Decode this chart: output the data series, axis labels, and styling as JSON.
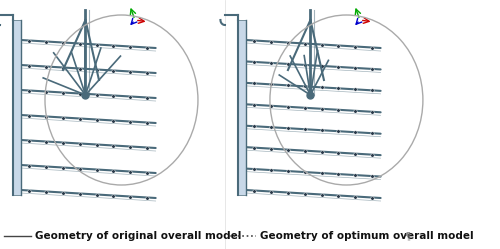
{
  "background_color": "#ffffff",
  "fig_width": 5.0,
  "fig_height": 2.49,
  "dpi": 100,
  "legend_items": [
    {
      "label": "Geometry of original overall model",
      "linestyle": "solid",
      "color": "#444444",
      "linewidth": 1.0
    },
    {
      "label": "Geometry of optimum overall model",
      "linestyle": "dotted",
      "color": "#444444",
      "linewidth": 1.2,
      "dot_color": "#555555"
    }
  ],
  "legend_fontsize": 7.5,
  "pipe_color": "#7a9aaa",
  "pipe_edge_color": "#4a6a7a",
  "dot_color": "#2a3a4a",
  "axis_colors": [
    "#cc0000",
    "#00aa00",
    "#0000cc",
    "#009900"
  ],
  "distributor_color": "#4a6a7a",
  "circle_color": "#aaaaaa",
  "bg_gray": "#e8eaec"
}
